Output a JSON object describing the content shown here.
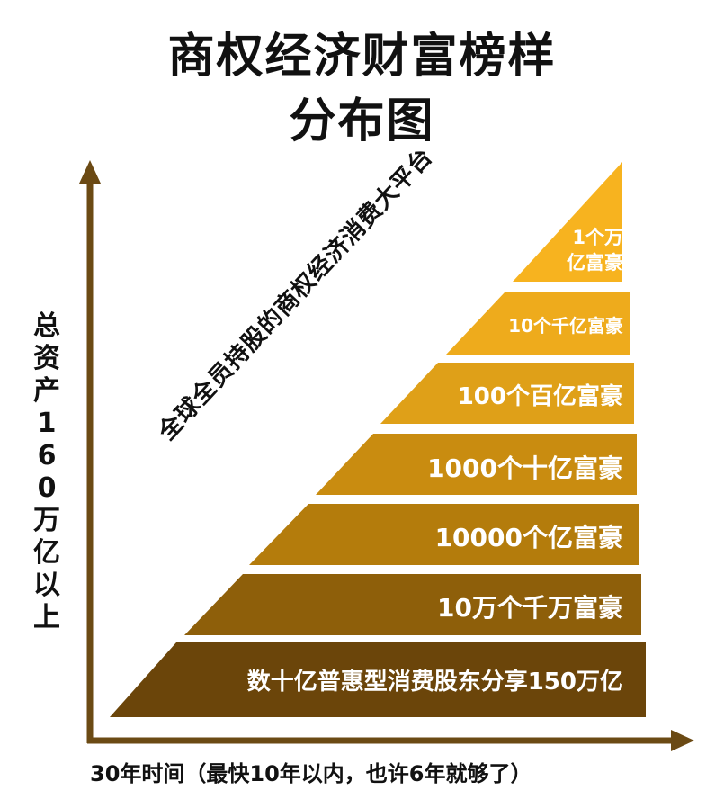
{
  "title": {
    "line1": "商权经济财富榜样",
    "line2": "分布图"
  },
  "y_axis_label": [
    "总",
    "资",
    "产",
    "1",
    "6",
    "0",
    "万",
    "亿",
    "以",
    "上"
  ],
  "x_axis_label": "30年时间（最快10年以内，也许6年就够了）",
  "diagonal_label": "全球全员持股的商权经济消费大平台",
  "tiers": [
    {
      "label_lines": [
        "1个万",
        "亿富豪"
      ],
      "color": "#F7B31F"
    },
    {
      "label_lines": [
        "10个千亿富豪"
      ],
      "color": "#EEAB1C"
    },
    {
      "label_lines": [
        "100个百亿富豪"
      ],
      "color": "#DFA018"
    },
    {
      "label_lines": [
        "1000个十亿富豪"
      ],
      "color": "#C98C10"
    },
    {
      "label_lines": [
        "10000个亿富豪"
      ],
      "color": "#B47C0C"
    },
    {
      "label_lines": [
        "10万个千万富豪"
      ],
      "color": "#8E5F0A"
    },
    {
      "label_lines": [
        "数十亿普惠型消费股东分享150万亿"
      ],
      "color": "#6B450A"
    }
  ],
  "axis_color": "#6B4A14"
}
